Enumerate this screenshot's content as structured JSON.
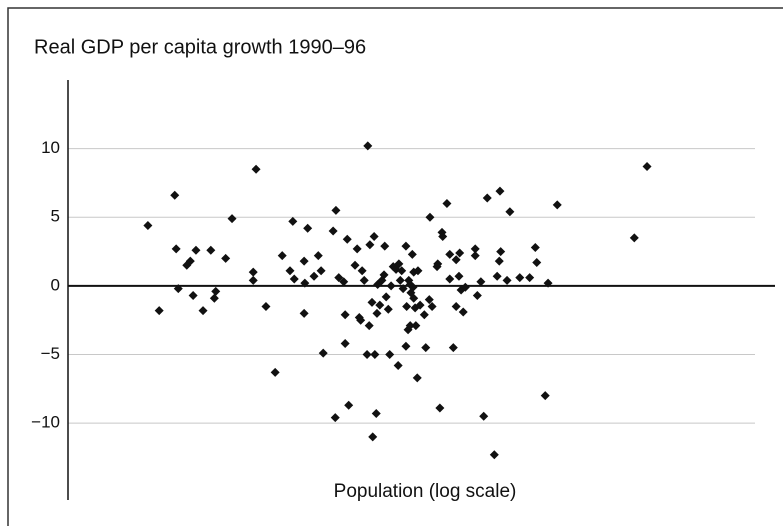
{
  "chart_data": {
    "type": "scatter",
    "title": "Real GDP per capita growth 1990–96",
    "xlabel": "Population (log scale)",
    "xlim": [
      0,
      100
    ],
    "ylim": [
      -15.6,
      15
    ],
    "yticks": [
      {
        "value": -10,
        "label": "−10"
      },
      {
        "value": -5,
        "label": "−5"
      },
      0,
      5,
      10
    ],
    "grid": true,
    "color": "#111111",
    "x": [
      11.3,
      12.9,
      15.1,
      15.3,
      15.6,
      16.8,
      17.3,
      17.7,
      18.1,
      19.1,
      20.2,
      20.7,
      20.9,
      22.3,
      23.2,
      26.6,
      26.2,
      26.2,
      28.0,
      29.3,
      30.3,
      31.4,
      31.8,
      32.0,
      33.4,
      33.5,
      33.4,
      33.9,
      34.8,
      35.4,
      35.8,
      36.1,
      37.5,
      37.9,
      37.8,
      38.3,
      39.0,
      39.2,
      39.2,
      39.5,
      39.7,
      40.6,
      40.9,
      41.2,
      41.4,
      41.6,
      41.9,
      42.3,
      42.4,
      42.6,
      42.7,
      43.0,
      43.1,
      43.3,
      43.4,
      43.6,
      43.7,
      43.8,
      44.1,
      44.4,
      44.7,
      44.8,
      45.0,
      45.3,
      45.5,
      45.7,
      46.0,
      46.4,
      46.7,
      46.8,
      47.0,
      47.2,
      47.4,
      47.8,
      47.8,
      47.9,
      48.1,
      48.2,
      48.4,
      48.4,
      48.5,
      48.7,
      48.8,
      48.9,
      48.9,
      49.1,
      49.2,
      49.4,
      49.5,
      49.8,
      50.4,
      50.6,
      51.1,
      51.2,
      51.5,
      52.2,
      52.3,
      52.6,
      52.9,
      53.0,
      53.6,
      54.0,
      54.0,
      54.5,
      54.9,
      54.9,
      55.3,
      55.4,
      55.6,
      55.9,
      56.2,
      57.6,
      57.6,
      57.9,
      58.4,
      58.8,
      59.3,
      60.3,
      60.7,
      61.0,
      61.1,
      61.2,
      62.1,
      62.5,
      63.9,
      65.3,
      66.1,
      66.3,
      67.5,
      67.9,
      69.2,
      80.1,
      81.9
    ],
    "y": [
      4.4,
      -1.8,
      6.6,
      2.7,
      -0.2,
      1.5,
      1.8,
      -0.7,
      2.6,
      -1.8,
      2.6,
      -0.9,
      -0.4,
      2.0,
      4.9,
      8.5,
      1.0,
      0.4,
      -1.5,
      -6.3,
      2.2,
      1.1,
      4.7,
      0.5,
      1.8,
      0.2,
      -2.0,
      4.2,
      0.7,
      2.2,
      1.1,
      -4.9,
      4.0,
      5.5,
      -9.6,
      0.6,
      0.3,
      -2.1,
      -4.2,
      3.4,
      -8.7,
      1.5,
      2.7,
      -2.3,
      -2.5,
      1.1,
      0.4,
      -5.0,
      10.2,
      -2.9,
      3.0,
      -1.2,
      -11.0,
      3.6,
      -5.0,
      -9.3,
      -2.0,
      0.1,
      -1.4,
      0.4,
      0.8,
      2.9,
      -0.8,
      -1.7,
      -5.0,
      0.0,
      1.4,
      1.2,
      -5.8,
      1.6,
      0.4,
      1.1,
      -0.2,
      -4.4,
      2.9,
      -1.5,
      -3.2,
      0.4,
      0.1,
      -2.9,
      -0.5,
      2.3,
      -0.1,
      -0.9,
      1.0,
      -1.6,
      -2.9,
      -6.7,
      1.1,
      -1.4,
      -2.1,
      -4.5,
      -1.0,
      5.0,
      -1.5,
      1.4,
      1.6,
      -8.9,
      3.9,
      3.6,
      6.0,
      2.3,
      0.5,
      -4.5,
      1.9,
      -1.5,
      0.7,
      2.4,
      -0.3,
      -1.9,
      -0.1,
      2.7,
      2.2,
      -0.7,
      0.3,
      -9.5,
      6.4,
      -12.3,
      0.7,
      1.8,
      6.9,
      2.5,
      0.4,
      5.4,
      0.6,
      0.6,
      2.8,
      1.7,
      -8.0,
      0.2,
      5.9,
      3.5,
      8.7
    ]
  }
}
